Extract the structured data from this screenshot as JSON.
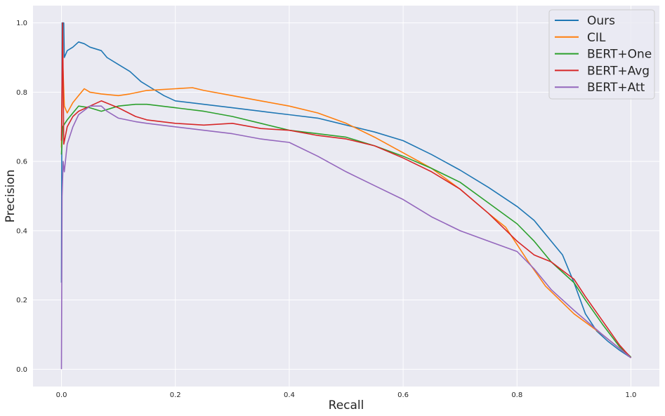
{
  "chart_data": {
    "type": "line",
    "xlabel": "Recall",
    "ylabel": "Precision",
    "xlim": [
      -0.05,
      1.05
    ],
    "ylim": [
      -0.05,
      1.05
    ],
    "xticks": [
      "0.0",
      "0.2",
      "0.4",
      "0.6",
      "0.8",
      "1.0"
    ],
    "yticks": [
      "0.0",
      "0.2",
      "0.4",
      "0.6",
      "0.8",
      "1.0"
    ],
    "grid": true,
    "background": "#eaeaf2",
    "legend_position": "top-right",
    "series": [
      {
        "name": "Ours",
        "color": "#1f77b4",
        "points": [
          [
            0.0,
            0.25
          ],
          [
            0.001,
            1.0
          ],
          [
            0.004,
            1.0
          ],
          [
            0.005,
            0.9
          ],
          [
            0.01,
            0.92
          ],
          [
            0.02,
            0.93
          ],
          [
            0.03,
            0.945
          ],
          [
            0.04,
            0.94
          ],
          [
            0.05,
            0.93
          ],
          [
            0.07,
            0.92
          ],
          [
            0.08,
            0.9
          ],
          [
            0.1,
            0.88
          ],
          [
            0.12,
            0.86
          ],
          [
            0.14,
            0.83
          ],
          [
            0.16,
            0.81
          ],
          [
            0.18,
            0.79
          ],
          [
            0.2,
            0.775
          ],
          [
            0.25,
            0.765
          ],
          [
            0.3,
            0.755
          ],
          [
            0.35,
            0.745
          ],
          [
            0.4,
            0.735
          ],
          [
            0.45,
            0.725
          ],
          [
            0.5,
            0.705
          ],
          [
            0.55,
            0.685
          ],
          [
            0.6,
            0.66
          ],
          [
            0.65,
            0.62
          ],
          [
            0.7,
            0.575
          ],
          [
            0.75,
            0.525
          ],
          [
            0.8,
            0.47
          ],
          [
            0.83,
            0.43
          ],
          [
            0.86,
            0.37
          ],
          [
            0.88,
            0.33
          ],
          [
            0.9,
            0.25
          ],
          [
            0.92,
            0.16
          ],
          [
            0.94,
            0.11
          ],
          [
            0.96,
            0.08
          ],
          [
            0.98,
            0.055
          ],
          [
            1.0,
            0.033
          ]
        ]
      },
      {
        "name": "CIL",
        "color": "#ff7f0e",
        "points": [
          [
            0.0,
            0.64
          ],
          [
            0.002,
            0.9
          ],
          [
            0.005,
            0.76
          ],
          [
            0.01,
            0.74
          ],
          [
            0.02,
            0.77
          ],
          [
            0.03,
            0.79
          ],
          [
            0.04,
            0.81
          ],
          [
            0.05,
            0.8
          ],
          [
            0.07,
            0.795
          ],
          [
            0.1,
            0.79
          ],
          [
            0.12,
            0.795
          ],
          [
            0.15,
            0.805
          ],
          [
            0.2,
            0.81
          ],
          [
            0.23,
            0.813
          ],
          [
            0.25,
            0.805
          ],
          [
            0.3,
            0.79
          ],
          [
            0.35,
            0.775
          ],
          [
            0.4,
            0.76
          ],
          [
            0.45,
            0.74
          ],
          [
            0.5,
            0.71
          ],
          [
            0.55,
            0.67
          ],
          [
            0.6,
            0.625
          ],
          [
            0.65,
            0.58
          ],
          [
            0.7,
            0.52
          ],
          [
            0.75,
            0.45
          ],
          [
            0.78,
            0.41
          ],
          [
            0.8,
            0.36
          ],
          [
            0.82,
            0.31
          ],
          [
            0.85,
            0.24
          ],
          [
            0.9,
            0.16
          ],
          [
            0.95,
            0.1
          ],
          [
            0.98,
            0.06
          ],
          [
            1.0,
            0.033
          ]
        ]
      },
      {
        "name": "BERT+One",
        "color": "#2ca02c",
        "points": [
          [
            0.0,
            0.62
          ],
          [
            0.002,
            0.7
          ],
          [
            0.01,
            0.72
          ],
          [
            0.02,
            0.74
          ],
          [
            0.03,
            0.76
          ],
          [
            0.05,
            0.755
          ],
          [
            0.07,
            0.745
          ],
          [
            0.1,
            0.76
          ],
          [
            0.13,
            0.765
          ],
          [
            0.15,
            0.765
          ],
          [
            0.2,
            0.755
          ],
          [
            0.25,
            0.745
          ],
          [
            0.3,
            0.73
          ],
          [
            0.35,
            0.71
          ],
          [
            0.4,
            0.69
          ],
          [
            0.45,
            0.68
          ],
          [
            0.5,
            0.67
          ],
          [
            0.55,
            0.645
          ],
          [
            0.6,
            0.615
          ],
          [
            0.65,
            0.58
          ],
          [
            0.7,
            0.54
          ],
          [
            0.75,
            0.48
          ],
          [
            0.8,
            0.42
          ],
          [
            0.83,
            0.37
          ],
          [
            0.86,
            0.31
          ],
          [
            0.9,
            0.25
          ],
          [
            0.92,
            0.2
          ],
          [
            0.95,
            0.13
          ],
          [
            0.98,
            0.065
          ],
          [
            1.0,
            0.035
          ]
        ]
      },
      {
        "name": "BERT+Avg",
        "color": "#d62728",
        "points": [
          [
            0.0,
            0.66
          ],
          [
            0.002,
            1.0
          ],
          [
            0.004,
            0.65
          ],
          [
            0.01,
            0.7
          ],
          [
            0.02,
            0.73
          ],
          [
            0.03,
            0.745
          ],
          [
            0.05,
            0.76
          ],
          [
            0.07,
            0.775
          ],
          [
            0.1,
            0.755
          ],
          [
            0.13,
            0.73
          ],
          [
            0.15,
            0.72
          ],
          [
            0.2,
            0.71
          ],
          [
            0.25,
            0.705
          ],
          [
            0.3,
            0.71
          ],
          [
            0.35,
            0.695
          ],
          [
            0.4,
            0.69
          ],
          [
            0.45,
            0.675
          ],
          [
            0.5,
            0.665
          ],
          [
            0.55,
            0.645
          ],
          [
            0.6,
            0.61
          ],
          [
            0.65,
            0.57
          ],
          [
            0.7,
            0.52
          ],
          [
            0.75,
            0.45
          ],
          [
            0.8,
            0.37
          ],
          [
            0.83,
            0.33
          ],
          [
            0.86,
            0.31
          ],
          [
            0.9,
            0.26
          ],
          [
            0.92,
            0.21
          ],
          [
            0.95,
            0.14
          ],
          [
            0.98,
            0.07
          ],
          [
            1.0,
            0.033
          ]
        ]
      },
      {
        "name": "BERT+Att",
        "color": "#9467bd",
        "points": [
          [
            0.0,
            0.0
          ],
          [
            0.001,
            0.5
          ],
          [
            0.003,
            0.6
          ],
          [
            0.005,
            0.57
          ],
          [
            0.01,
            0.65
          ],
          [
            0.02,
            0.7
          ],
          [
            0.03,
            0.735
          ],
          [
            0.05,
            0.76
          ],
          [
            0.07,
            0.76
          ],
          [
            0.08,
            0.745
          ],
          [
            0.1,
            0.725
          ],
          [
            0.13,
            0.715
          ],
          [
            0.15,
            0.71
          ],
          [
            0.2,
            0.7
          ],
          [
            0.25,
            0.69
          ],
          [
            0.3,
            0.68
          ],
          [
            0.35,
            0.665
          ],
          [
            0.4,
            0.655
          ],
          [
            0.45,
            0.615
          ],
          [
            0.5,
            0.57
          ],
          [
            0.55,
            0.53
          ],
          [
            0.6,
            0.49
          ],
          [
            0.65,
            0.44
          ],
          [
            0.7,
            0.4
          ],
          [
            0.75,
            0.37
          ],
          [
            0.8,
            0.34
          ],
          [
            0.83,
            0.29
          ],
          [
            0.86,
            0.23
          ],
          [
            0.9,
            0.17
          ],
          [
            0.95,
            0.1
          ],
          [
            1.0,
            0.033
          ]
        ]
      }
    ]
  }
}
